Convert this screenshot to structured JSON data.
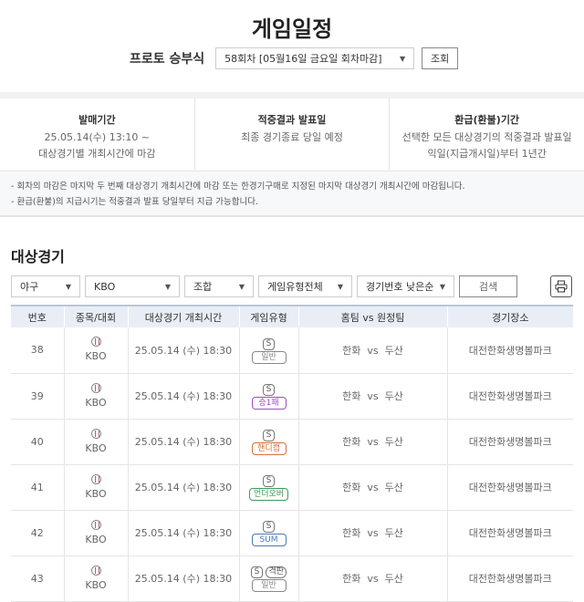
{
  "title": "게임일정",
  "round": {
    "label": "프로토 승부식",
    "selected": "58회차 [05월16일 금요일 회차마감]",
    "button": "조회"
  },
  "info": [
    {
      "heading": "발매기간",
      "lines": [
        "25.05.14(수) 13:10 ~",
        "대상경기별 개최시간에 마감"
      ]
    },
    {
      "heading": "적중결과 발표일",
      "lines": [
        "최종 경기종료 당일 예정"
      ]
    },
    {
      "heading": "환급(환불)기간",
      "lines": [
        "선택한 모든 대상경기의 적중결과 발표일",
        "익일(지급개시일)부터 1년간"
      ]
    }
  ],
  "notes": [
    "- 회차의 마감은 마지막 두 번째 대상경기 개최시간에 마감 또는 한경기구매로 지정된 마지막 대상경기 개최시간에 마감됩니다.",
    "- 환급(환불)의 지급시기는 적중결과 발표 당일부터 지급 가능합니다."
  ],
  "section_title": "대상경기",
  "filters": {
    "sport": "야구",
    "league": "KBO",
    "combo": "조합",
    "type": "게임유형전체",
    "sort": "경기번호 낮은순",
    "search": "검색",
    "print_icon": "printer-icon"
  },
  "table": {
    "headers": [
      "번호",
      "종목/대회",
      "대상경기 개최시간",
      "게임유형",
      "홈팀 vs 원정팀",
      "경기장소"
    ],
    "rows": [
      {
        "no": "38",
        "league": "KBO",
        "time": "25.05.14 (수) 18:30",
        "badge": "S",
        "extra": "",
        "type": "일반",
        "type_color": "#888888",
        "teams": "한화  vs  두산",
        "venue": "대전한화생명볼파크"
      },
      {
        "no": "39",
        "league": "KBO",
        "time": "25.05.14 (수) 18:30",
        "badge": "S",
        "extra": "",
        "type": "승1패",
        "type_color": "#9b4fc9",
        "teams": "한화  vs  두산",
        "venue": "대전한화생명볼파크"
      },
      {
        "no": "40",
        "league": "KBO",
        "time": "25.05.14 (수) 18:30",
        "badge": "S",
        "extra": "",
        "type": "핸디캡",
        "type_color": "#d2713f",
        "teams": "한화  vs  두산",
        "venue": "대전한화생명볼파크"
      },
      {
        "no": "41",
        "league": "KBO",
        "time": "25.05.14 (수) 18:30",
        "badge": "S",
        "extra": "",
        "type": "언더오버",
        "type_color": "#3f9a5a",
        "teams": "한화  vs  두산",
        "venue": "대전한화생명볼파크"
      },
      {
        "no": "42",
        "league": "KBO",
        "time": "25.05.14 (수) 18:30",
        "badge": "S",
        "extra": "",
        "type": "SUM",
        "type_color": "#4a78b8",
        "teams": "한화  vs  두산",
        "venue": "대전한화생명볼파크"
      },
      {
        "no": "43",
        "league": "KBO",
        "time": "25.05.14 (수) 18:30",
        "badge": "S",
        "extra": "격판",
        "type": "일반",
        "type_color": "#888888",
        "teams": "한화  vs  두산",
        "venue": "대전한화생명볼파크"
      }
    ]
  }
}
